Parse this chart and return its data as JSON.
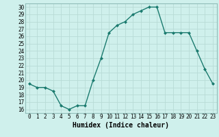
{
  "x": [
    0,
    1,
    2,
    3,
    4,
    5,
    6,
    7,
    8,
    9,
    10,
    11,
    12,
    13,
    14,
    15,
    16,
    17,
    18,
    19,
    20,
    21,
    22,
    23
  ],
  "y": [
    19.5,
    19.0,
    19.0,
    18.5,
    16.5,
    16.0,
    16.5,
    16.5,
    20.0,
    23.0,
    26.5,
    27.5,
    28.0,
    29.0,
    29.5,
    30.0,
    30.0,
    26.5,
    26.5,
    26.5,
    26.5,
    24.0,
    21.5,
    19.5
  ],
  "line_color": "#1a7a6e",
  "marker": "D",
  "marker_size": 2.0,
  "bg_color": "#cff0ec",
  "grid_color": "#b8dbd6",
  "xlabel": "Humidex (Indice chaleur)",
  "xlim": [
    -0.5,
    23.5
  ],
  "ylim": [
    15.5,
    30.5
  ],
  "yticks": [
    16,
    17,
    18,
    19,
    20,
    21,
    22,
    23,
    24,
    25,
    26,
    27,
    28,
    29,
    30
  ],
  "xticks": [
    0,
    1,
    2,
    3,
    4,
    5,
    6,
    7,
    8,
    9,
    10,
    11,
    12,
    13,
    14,
    15,
    16,
    17,
    18,
    19,
    20,
    21,
    22,
    23
  ],
  "tick_fontsize": 5.5,
  "xlabel_fontsize": 7.0,
  "line_width": 1.0
}
